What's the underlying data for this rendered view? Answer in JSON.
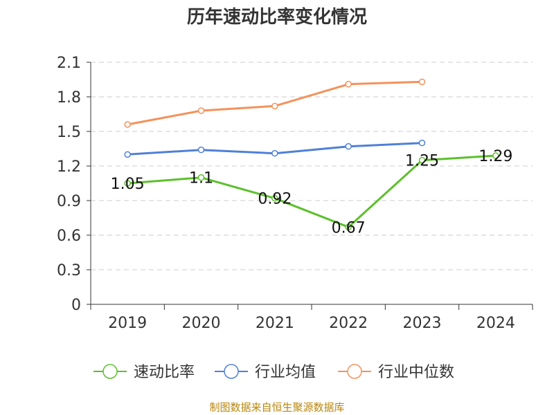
{
  "chart_data": {
    "type": "line",
    "title": "历年速动比率变化情况",
    "categories": [
      "2019",
      "2020",
      "2021",
      "2022",
      "2023",
      "2024"
    ],
    "ylim": [
      0,
      2.1
    ],
    "yticks": [
      "0",
      "0.3",
      "0.6",
      "0.9",
      "1.2",
      "1.5",
      "1.8",
      "2.1"
    ],
    "grid": true,
    "legend_position": "bottom",
    "series": [
      {
        "name": "速动比率",
        "color": "#5cc02b",
        "values": [
          1.05,
          1.1,
          0.92,
          0.67,
          1.25,
          1.29
        ],
        "labels": [
          "1.05",
          "1.1",
          "0.92",
          "0.67",
          "1.25",
          "1.29"
        ]
      },
      {
        "name": "行业均值",
        "color": "#4f80d8",
        "values": [
          1.3,
          1.34,
          1.31,
          1.37,
          1.4,
          null
        ]
      },
      {
        "name": "行业中位数",
        "color": "#f5915a",
        "values": [
          1.56,
          1.68,
          1.72,
          1.91,
          1.93,
          null
        ]
      }
    ],
    "source": "制图数据来自恒生聚源数据库"
  }
}
